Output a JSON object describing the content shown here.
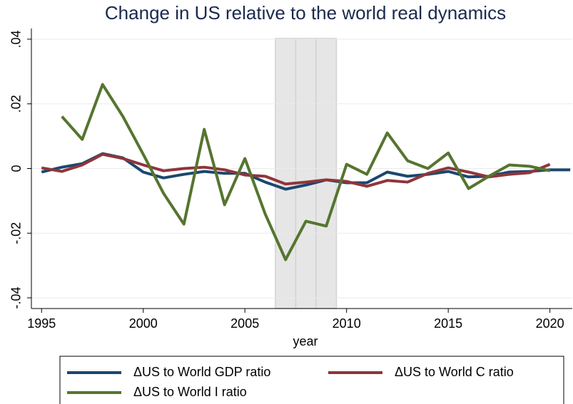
{
  "chart_data": {
    "type": "line",
    "title": "Change in US relative to the world real dynamics",
    "x_label": "year",
    "x": [
      1995,
      1996,
      1997,
      1998,
      1999,
      2000,
      2001,
      2002,
      2003,
      2004,
      2005,
      2006,
      2007,
      2008,
      2009,
      2010,
      2011,
      2012,
      2013,
      2014,
      2015,
      2016,
      2017,
      2018,
      2019,
      2020,
      2021
    ],
    "series": [
      {
        "name": "ΔUS to World GDP ratio",
        "color": "#1a476f",
        "values": [
          -0.0011,
          0.0004,
          0.0015,
          0.0046,
          0.0033,
          -0.0011,
          -0.0029,
          -0.0018,
          -0.0009,
          -0.0015,
          -0.0015,
          -0.0042,
          -0.0064,
          -0.0051,
          -0.0035,
          -0.0044,
          -0.0044,
          -0.0011,
          -0.0024,
          -0.0018,
          -0.0009,
          -0.0026,
          -0.0024,
          -0.0011,
          -0.0009,
          -0.0004,
          -0.0004
        ]
      },
      {
        "name": "ΔUS to World C ratio",
        "color": "#90353b",
        "values": [
          0.0002,
          -0.0009,
          0.0011,
          0.0044,
          0.0031,
          0.0011,
          -0.0007,
          0,
          0.0004,
          -0.0004,
          -0.002,
          -0.0024,
          -0.0048,
          -0.0042,
          -0.0035,
          -0.004,
          -0.0055,
          -0.0037,
          -0.0042,
          -0.0015,
          0.0002,
          -0.0011,
          -0.0026,
          -0.0018,
          -0.0013,
          0.0013,
          null
        ]
      },
      {
        "name": "ΔUS to World I ratio",
        "color": "#55752f",
        "values": [
          null,
          0.0161,
          0.009,
          0.026,
          0.0161,
          0.0044,
          -0.0077,
          -0.0172,
          0.0121,
          -0.0112,
          0.0031,
          -0.0141,
          -0.0282,
          -0.0163,
          -0.0178,
          0.0013,
          -0.0018,
          0.011,
          0.0024,
          0,
          0.0048,
          -0.0062,
          -0.0024,
          0.0011,
          0.0007,
          -0.0007,
          null
        ]
      }
    ],
    "shaded_years": [
      2007,
      2008,
      2009
    ],
    "xlim": [
      1994.5,
      2021.1
    ],
    "xticks": [
      1995,
      2000,
      2005,
      2010,
      2015,
      2020
    ],
    "ylim": [
      -0.0433,
      0.0433
    ],
    "yticks": [
      {
        "value": -0.04,
        "label": "-.04"
      },
      {
        "value": -0.02,
        "label": "-.02"
      },
      {
        "value": 0,
        "label": "0"
      },
      {
        "value": 0.02,
        "label": ".02"
      },
      {
        "value": 0.04,
        "label": ".04"
      }
    ],
    "grid": true
  }
}
